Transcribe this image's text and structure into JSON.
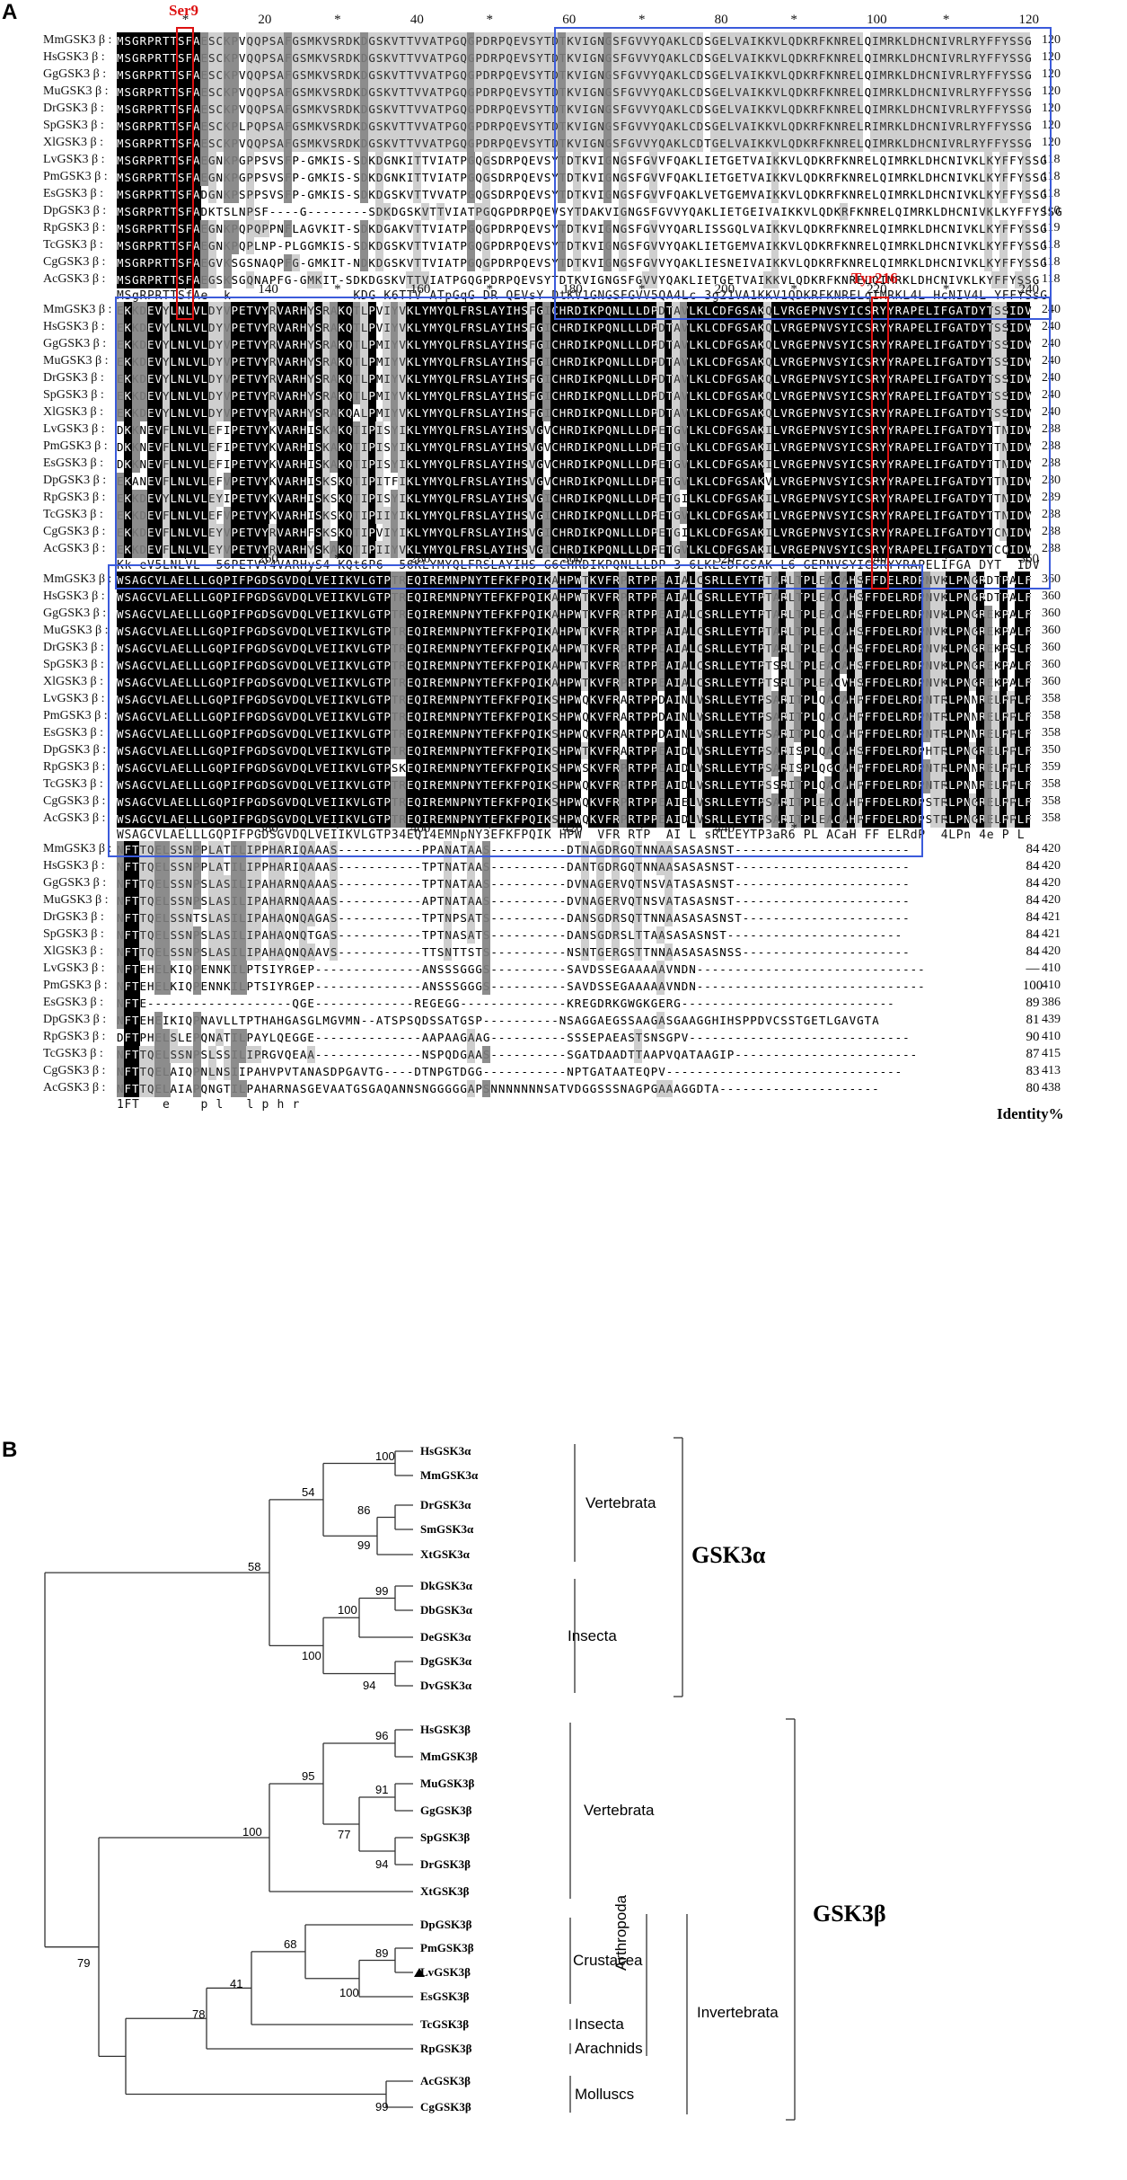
{
  "panel_a": {
    "letter": "A",
    "markers": {
      "ser": "Ser9",
      "tyr": "Tyr216"
    },
    "identity_header": "Identity%",
    "species": [
      "MmGSK3 β",
      "HsGSK3 β",
      "GgGSK3 β",
      "MuGSK3 β",
      "DrGSK3 β",
      "SpGSK3 β",
      "XlGSK3 β",
      "LvGSK3 β",
      "PmGSK3 β",
      "EsGSK3 β",
      "DpGSK3 β",
      "RpGSK3 β",
      "TcGSK3 β",
      "CgGSK3 β",
      "AcGSK3 β"
    ],
    "blocks": [
      {
        "ruler": [
          "*",
          "20",
          "*",
          "40",
          "*",
          "60",
          "*",
          "80",
          "*",
          "100",
          "*",
          "120"
        ],
        "end_positions": [
          "120",
          "120",
          "120",
          "120",
          "120",
          "120",
          "120",
          "118",
          "118",
          "118",
          "110",
          "119",
          "118",
          "118",
          "118"
        ],
        "sequences": [
          "MSGRPRTTSFAESCKPVQQPSAFGSMKVSRDKDGSKVTTVVATPGQGPDRPQEVSYTDTKVIGNGSFGVVYQAKLCDSGELVAIKKVLQDKRFKNRELQIMRKLDHCNIVRLRYFFYSSG",
          "MSGRPRTTSFAESCKPVQQPSAFGSMKVSRDKDGSKVTTVVATPGQGPDRPQEVSYTDTKVIGNGSFGVVYQAKLCDSGELVAIKKVLQDKRFKNRELQIMRKLDHCNIVRLRYFFYSSG",
          "MSGRPRTTSFAESCKPVQQPSAFGSMKVSRDKDGSKVTTVVATPGQGPDRPQEVSYTDTKVIGNGSFGVVYQAKLCDSGELVAIKKVLQDKRFKNRELQIMRKLDHCNIVRLRYFFYSSG",
          "MSGRPRTTSFAESCKPVQQPSAFGSMKVSRDKDGSKVTTVVATPGQGPDRPQEVSYTDTKVIGNGSFGVVYQAKLCDSGELVAIKKVLQDKRFKNRELQIMRKLDHCNIVRLRYFFYSSG",
          "MSGRPRTTSFAESCKPVQQPSAFGSMKVSRDKDGSKVTTVVATPGQGPDRPQEVSYTDTKVIGNGSFGVVYQAKLCDSGELVAIKKVLQDKRFKNRELQIMRKLDHCNIVRLRYFFYSSG",
          "MSGRPRTTSFAESCKPLPQPSAFGSMKVSRDKDGSKVTTVVATPGQGPDRPQEVSYTDTKVIGNGSFGVVYQAKLCDSGELVAIKKVLQDKRFKNRELRIMRKLDHCNIVRLRYFFYSSG",
          "MSGRPRTTSFAESCKPVQQPSAFGSMKVSRDKDGSKVTTVVATPGQGPDRPQEVSYTDTKVIGNGSFGVVYQAKLCDTGELVAIKKVLQDKRFKNRELQIMRKLDHCNIVRLRYFFYSSG",
          "MSGRPRTTSFAEGNKPGPPSVSFP-GMKIS-SDKDGNKITTVIATPGQGSDRPQEVSYTDTKVIGNGSFGVVFQAKLIETGETVAIKKVLQDKRFKNRELQIMRKLDHCNIVKLKYFFYSSG",
          "MSGRPRTTSFAEGNKPGPPSVSFP-GMKIS-SDKDGNKITTVIATPGQGSDRPQEVSYTDTKVIGNGSFGVVFQAKLIETGETVAIKKVLQDKRFKNRELQIMRKLDHCNIVKLKYFFYSSG",
          "MSGRPRTTSFADGNKPSPPSVSFP-GMKIS-SDKDGSKVTTVVATPGQGSDRPQEVSYTDTKVIGNGSFGVVFQAKLVETGEMVAIKKVLQDKRFKNRELQIMRKLDHCNIVKLKYFFYSSG",
          "MSGRPRTTSFADKTSLNPSF----G--------SDKDGSKVTTVIATPGQGPDRPQEVSYTDAKVIGNGSFGVVYQAKLIETGEIVAIKKVLQDKRFKNRELQIMRKLDHCNIVKLKYFFYSSG",
          "MSGRPRTTSFAEGNKPQPQPPNFLAGVKIT-SDKDGAKVTTVIATPGQGPDRPQEVSYTDTKVIGNGSFGVVYQARLISSGQLVAIKKVLQDKRFKNRELQIMRKLDHCNIVKLKYFFYSSG",
          "MSGRPRTTSFAEGNKPQPLNP-PLGGMKIS-SDKDGSKVTTVIATPGQGPDRPQEVSYTDTKVIGNGSFGVVYQAKLIETGEMVAIKKVLQDKRFKNRELQIMRKLDHCNIVKLKYFFYSSG",
          "MSGRPRTTSFAEGVKSGSNAQPFG-GMKIT-NDKDGSKVTTVIATPGQGPDRPQEVSYTDTKVIGNGSFGVVYQAKLIESNEIVAIKKVLQDKRFKNRELQIMRKLDHCNIVKLKYFFYSSG",
          "MSGRPRTTSFAEGSKSGQNAPFG-GMKIT-SDKDGSKVTTVIATPGQGPDRPQEVSYTDTKVIGNGSFGVVYQAKLIETGETVAIKKVLQDKRFKNRELQIMRKLDHCNIVKLKYFFYSSG"
        ],
        "consensus": "MSgRPRTTSfAe  k                KDG K6TTV ATpGqG DR QEVsY DtKV1GNGSFGVV5QA4Lc 3g21VA1KKV1QDKRFKNRELqIMRKL4L HcNIV4L YFFYSsG"
      },
      {
        "ruler": [
          "*",
          "140",
          "*",
          "160",
          "*",
          "180",
          "*",
          "200",
          "*",
          "220",
          "*",
          "240"
        ],
        "end_positions": [
          "240",
          "240",
          "240",
          "240",
          "240",
          "240",
          "240",
          "238",
          "238",
          "238",
          "230",
          "239",
          "238",
          "238",
          "238"
        ],
        "sequences": [
          "EKKDEVYLNLVLDYVPETVYRVARHYSRAKQTLPVIYVKLYMYQLFRSLAYIHSFGICHRDIKPQNLLLDPDTAVLKLCDFGSAKQLVRGEPNVSYICSRYYRAPELIFGATDYTSSIDV",
          "EKKDEVYLNLVLDYVPETVYRVARHYSRAKQTLPVIYVKLYMYQLFRSLAYIHSFGICHRDIKPQNLLLDPDTAVLKLCDFGSAKQLVRGEPNVSYICSRYYRAPELIFGATDYTSSIDV",
          "EKKDEVYLNLVLDYVPETVYRVARHYSRAKQTLPMIYVKLYMYQLFRSLAYIHSFGICHRDIKPQNLLLDPDTAVLKLCDFGSAKQLVRGEPNVSYICSRYYRAPELIFGATDYTSSIDV",
          "EKKDEVYLNLVLDYVPETVYRVARHYSRAKQTLPMIYVKLYMYQLFRSLAYIHSFGICHRDIKPQNLLLDPDTAVLKLCDFGSAKQLVRGEPNVSYICSRYYRAPELIFGATDYTSSIDV",
          "EKKDEVYLNLVLDYVPETVYRVARHYSRAKQTLPMIYVKLYMYQLFRSLAYIHSFGICHRDIKPQNLLLDPDTAVLKLCDFGSAKQLVRGEPNVSYICSRYYRAPELIFGATDYTSSIDV",
          "EKKDEVYLNLVLDYVPETVYRVARHYSRAKQTLPMIYVKLYMYQLFRSLAYIHSFGICHRDIKPQNLLLDPDTAVLKLCDFGSAKQLVRGEPNVSYICSRYYRAPELIFGATDYTSSIDV",
          "EKKDEVYLNLVLDYVPETVYRVARHYSRAKQALPMIYVKLYMYQLFRSLAYIHSFGICHRDIKPQNLLLDPDTAVLKLCDFGSAKQLVRGEPNVSYICSRYYRAPELIFGATDYTSSIDV",
          "DKKNEVFLNLVLEFIPETVYKVARHISKAKQTIPISYIKLYMYQLFRSLAYIHSVGVCHRDIKPQNLLLDPETGVLKLCDFGSAKILVRGEPNVSYICSRYYRAPELIFGATDYTTNIDV",
          "DKKNEVFLNLVLEFIPETVYKVARHISKAKQTIPISYIKLYMYQLFRSLAYIHSVGVCHRDIKPQNLLLDPETGVLKLCDFGSAKILVRGEPNVSYICSRYYRAPELIFGATDYTTNIDV",
          "DKKNEVFLNLVLEFIPETVYKVARHISKAKQTIPISYIKLYMYQLFRSLAYIHSVGVCHRDIKPQNLLLDPETGVLKLCDFGSAKILVRGEPNVSYICSRYYRAPELIFGATDYTTNIDV",
          "EKANEVFLNLVLEFVPETVYKVARHISKSKQTIPITFIKLYMYQLFRSLAYIHSVGVCHRDIKPQNLLLDPETGVLKLCDFGSAKVLVRGEPNVSYICSRYYRAPELIFGATDYTTNIDV",
          "EKKDEVYLNLVLEYIPETVYKVARHISKSKQTIPISYIKLYMYQLFRSLAYIHSVGICHRDIKPQNLLLDPETGILKLCDFGSAKILVRGEPNVSYICSRYYRAPELIFGATDYTTNIDV",
          "EKKDEVFLNLVLEFVPETVYKVARHISKSKQTIPIIYIKLYMYQLFRSLAYIHSVGICHRDIKPQNLLLDPETGVLKLCDFGSAKILVRGEPNVSYICSRYYRAPELIFGATDYTTNIDV",
          "EKKDEVFLNLVLEYVPETVYRVARHFSKSKQTIPVIYIKLYMYQLFRSLAYIHSVGICHRDIKPQNLLLDPETGILKLCDFGSAKILVRGEPNVSYICSRYYRAPELIFGATDYTCNIDV",
          "EKKDEVFLNLVLEYVPETVYRVARHYSKAKQTIPIIYVKLYMYQLFRSLAYIHSVGICHRDIKPQNLLLDPETGVLKLCDFGSAKILVRGEPNVSYICSRYYRAPELIFGATDYTCQIDV"
        ],
        "consensus": "Kk eV5LNLVL  56PETVY4VARHyS4 KQt6P6  56KLYMYQLFRSLAYIHS G6CHRDIKPQNLLLDP 3 6LKLcDFGSAK L6 GEPNVSYICSRYYRAPELIFGA DYT  IDV"
      },
      {
        "ruler": [
          "*",
          "260",
          "*",
          "280",
          "*",
          "300",
          "*",
          "320",
          "*",
          "340",
          "*",
          "360"
        ],
        "end_positions": [
          "360",
          "360",
          "360",
          "360",
          "360",
          "360",
          "360",
          "358",
          "358",
          "358",
          "350",
          "359",
          "358",
          "358",
          "358"
        ],
        "sequences": [
          "WSAGCVLAELLLGQPIFPGDSGVDQLVEIIKVLGTPTREQIREMNPNYTEFKFPQIKAHPWTKVFRPRTPPEAIALCSRLLEYTPTARLTPLEACAHSFFDELRDPNVKLPNGRDTPALF",
          "WSAGCVLAELLLGQPIFPGDSGVDQLVEIIKVLGTPTREQIREMNPNYTEFKFPQIKAHPWTKVFRPRTPPEAIALCSRLLEYTPTARLTPLEACAHSFFDELRDPNVKLPNGRDTPALF",
          "WSAGCVLAELLLGQPIFPGDSGVDQLVEIIKVLGTPTREQIREMNPNYTEFKFPQIKAHPWTKVFRPRTPPEAIALCSRLLEYTPTARLTPLEACAHSFFDELRDPNVKLPNGREKPALF",
          "WSAGCVLAELLLGQPIFPGDSGVDQLVEIIKVLGTPTREQIREMNPNYTEFKFPQIKAHPWTKVFRPRTPPEAIALCSRLLEYTPTARLTPLEACAHSFFDELRDPNVKLPNGREKPALF",
          "WSAGCVLAELLLGQPIFPGDSGVDQLVEIIKVLGTPTREQIREMNPNYTEFKFPQIKAHPWTKVFRPRTPPEAIALCSRLLEYTPTARLTPLEACAHSFFDELRDPNVKLPNGREKPSLF",
          "WSAGCVLAELLLGQPIFPGDSGVDQLVEIIKVLGTPTREQIREMNPNYTEFKFPQIKAHPWTKVFRPRTPPEAIALCSRLLEYTPTSRLTPLEACAHSFFDELRDPNVKLPNGREKPALF",
          "WSAGCVLAELLLGQPIFPGDSGVDQLVEIIKVLGTPTREQIREMNPNYTEFKFPQIKAHPWTKVFRPRTPPEAIALCSRLLEYTPTSRLTPLEACVHSFFDELRDPNVKLPNGREKPALF",
          "WSAGCVLAELLLGQPIFPGDSGVDQLVEIIKVLGTPTREQIREMNPNYTEFKFPQIKSHPWQKVFRARTPPDAINLVSRLLEYTPSARITPLQACAHPFFDELRDPNTRLPNNRELPPLF",
          "WSAGCVLAELLLGQPIFPGDSGVDQLVEIIKVLGTPTREQIREMNPNYTEFKFPQIKSHPWQKVFRARTPPDAINLVSRLLEYTPSARITPLQACAHPFFDELRDPNTRLPNNRELPPLF",
          "WSAGCVLAELLLGQPIFPGDSGVDQLVEIIKVLGTPTREQIREMNPNYTEFKFPQIKSHPWQKVFRARTPPDAINLVSRLLEYTPSARITPLQACAHPFFDELRDPNTRLPNNRELPPLF",
          "WSAGCVLAELLLGQPIFPGDSGVDQLVEIIKVLGTPTREQIREMNPNYTEFKFPQIKSHPWTKVFRARTPPEAIDLVSRLLEYTPSARISPLQACAHSFFDELRDPHTRLPNGRELPPLF",
          "WSAGCVLAELLLGQPIFPGDSGVDQLVEIIKVLGTPSKEQIREMNPNYTEFKFPQIKSHPWSKVFRPRTPPEAIDLVSRLLEYTPSARISPLQGCAHPFFDELRDPNTRLPNNRELPPLF",
          "WSAGCVLAELLLGQPIFPGDSGVDQLVEIIKVLGTPTREQIREMNPNYTEFKFPQIKSHPWQKVFRPRTPPEAIDLVSRLLEYTPSSRITPLQACAHPFFDELRDPNTRLPNNRELPPLF",
          "WSAGCVLAELLLGQPIFPGDSGVDQLVEIIKVLGTPTREQIREMNPNYTEFKFPQIKSHPWQKVFRPRTPPEAIELVSRLLEYTPSARITPLEACAHPFFDELRDPSTRLPNGRELPPLF",
          "WSAGCVLAELLLGQPIFPGDSGVDQLVEIIKVLGTPTREQIREMNPNYTEFKFPQIKSHPWQKVFRPRTPPEAIDLVSRLLEYTPSARITPLEACAHPFFDELRDPSTRLPNGRELPPLF"
        ],
        "consensus": "WSAGCVLAELLLGQPIFPGDSGVDQLVEIIKVLGTP34EQ14EMNpNY3EFKFPQIK HPW  VFR RTP  AI L sRLLEYTP3aR6 PL ACaH FF ELRdP  4LPn 4e P L"
      },
      {
        "ruler": [
          "*",
          "380",
          "*",
          "400",
          "*",
          "420",
          "*",
          "440",
          "*",
          "",
          "",
          ""
        ],
        "end_positions": [
          "420",
          "420",
          "420",
          "420",
          "421",
          "421",
          "420",
          "410",
          "410",
          "386",
          "439",
          "410",
          "415",
          "413",
          "438"
        ],
        "identities": [
          "84",
          "84",
          "84",
          "84",
          "84",
          "84",
          "84",
          "—",
          "100",
          "89",
          "81",
          "90",
          "87",
          "83",
          "80"
        ],
        "sequences": [
          "NFTTQELSSNPPLATILIPPHARIQAAAS-----------PPANATAAS----------DTNAGDRGQTNNAASASASNST-----------------------",
          "NFTTQELSSNPPLATILIPPHARIQAAAS-----------TPTNATAAS----------DANTGDRGQTNNAASASASNST-----------------------",
          "NFTTQELSSNPSLASILIPAHARNQAAAS-----------TPTNATAAS----------DVNAGERVQTNSVATASASNST-----------------------",
          "NFTTQELSSNPSLASILIPAHARNQAAAS-----------APTNATAAS----------DVNAGERVQTNSVATASASNST-----------------------",
          "NFTTQELSSNTSLASILIPAHAQNQAGAS-----------TPTNPSATS----------DANSGDRSQTTNNAASASASNST----------------------",
          "NFTTQELSSNPSLASILIPAHAQNQTGAS-----------TPTNASATS----------DANSGDRSLTTAASASASNST-----------------------",
          "NFTTQELSSNPSLASILIPAHAQNQAAVS-----------TTSNTTSTS----------NSNTGERGSTTNNAASASASNSS----------------------",
          "NFTEHELKIQPENNKILPTSIYRGEP--------------ANSSSGGGS----------SAVDSSEGAAAAAVNDN------------------------------",
          "NFTEHELKIQPENNKILPTSIYRGEP--------------ANSSSGGGS----------SAVDSSEGAAAAAVNDN------------------------------",
          "NFTE-------------------QGE-------------REGEGG--------------KREGDRKGWGKGERG----------------------------",
          "NFTEHEIKIQPNAVLLTPTHAHGASGLMGVMN--ATSPSQDSSATGSP----------NSAGGAEGSSAAGASGAAGGHIHSPPDVCSSTGETLGAVGTA",
          "DFTPHELSLEPQNATILPAYLQEGGE--------------AAPAAGAAG----------SSSEPAEASTSNSGPV-----------------------------",
          "NFTTQELSSNPSLSSILIPRGVQEAA--------------NSPQDGAAS----------SGATDAADTTAAPVQATAAGIP------------------------",
          "NFTTQELAIQPNLNSIIPAHVPVTANASDPGAVTG----DTNPGTDGG-----------NPTGATAATEQPV-------------------------------",
          "NFTTQELAIAPQNGTILPAHARNASGEVAATGSGAQANNSNGGGGGAPSNNNNNNNSATVDGGSSSNAGPGAAAGGDTA---------------------"
        ],
        "consensus": "1FT   e    p l   l p h r"
      }
    ]
  },
  "panel_b": {
    "letter": "B",
    "taxa": [
      "HsGSK3α",
      "MmGSK3α",
      "DrGSK3α",
      "SmGSK3α",
      "XtGSK3α",
      "DkGSK3α",
      "DbGSK3α",
      "DeGSK3α",
      "DgGSK3α",
      "DvGSK3α",
      "HsGSK3β",
      "MmGSK3β",
      "MuGSK3β",
      "GgGSK3β",
      "SpGSK3β",
      "DrGSK3β",
      "XtGSK3β",
      "DpGSK3β",
      "PmGSK3β",
      "LvGSK3β",
      "EsGSK3β",
      "TcGSK3β",
      "RpGSK3β",
      "AcGSK3β",
      "CgGSK3β"
    ],
    "bootstraps": [
      "100",
      "54",
      "86",
      "99",
      "58",
      "99",
      "100",
      "100",
      "94",
      "96",
      "95",
      "91",
      "100",
      "77",
      "94",
      "68",
      "89",
      "41",
      "100",
      "78",
      "79",
      "99"
    ],
    "groups": {
      "vertebrata_a": "Vertebrata",
      "insecta_a": "Insecta",
      "gsk3a": "GSK3α",
      "vertebrata_b": "Vertebrata",
      "crustacea": "Crustacea",
      "insecta_b": "Insecta",
      "arachnids": "Arachnids",
      "molluscs": "Molluscs",
      "arthropoda": "Arthropoda",
      "invertebrata": "Invertebrata",
      "gsk3b": "GSK3β"
    }
  }
}
